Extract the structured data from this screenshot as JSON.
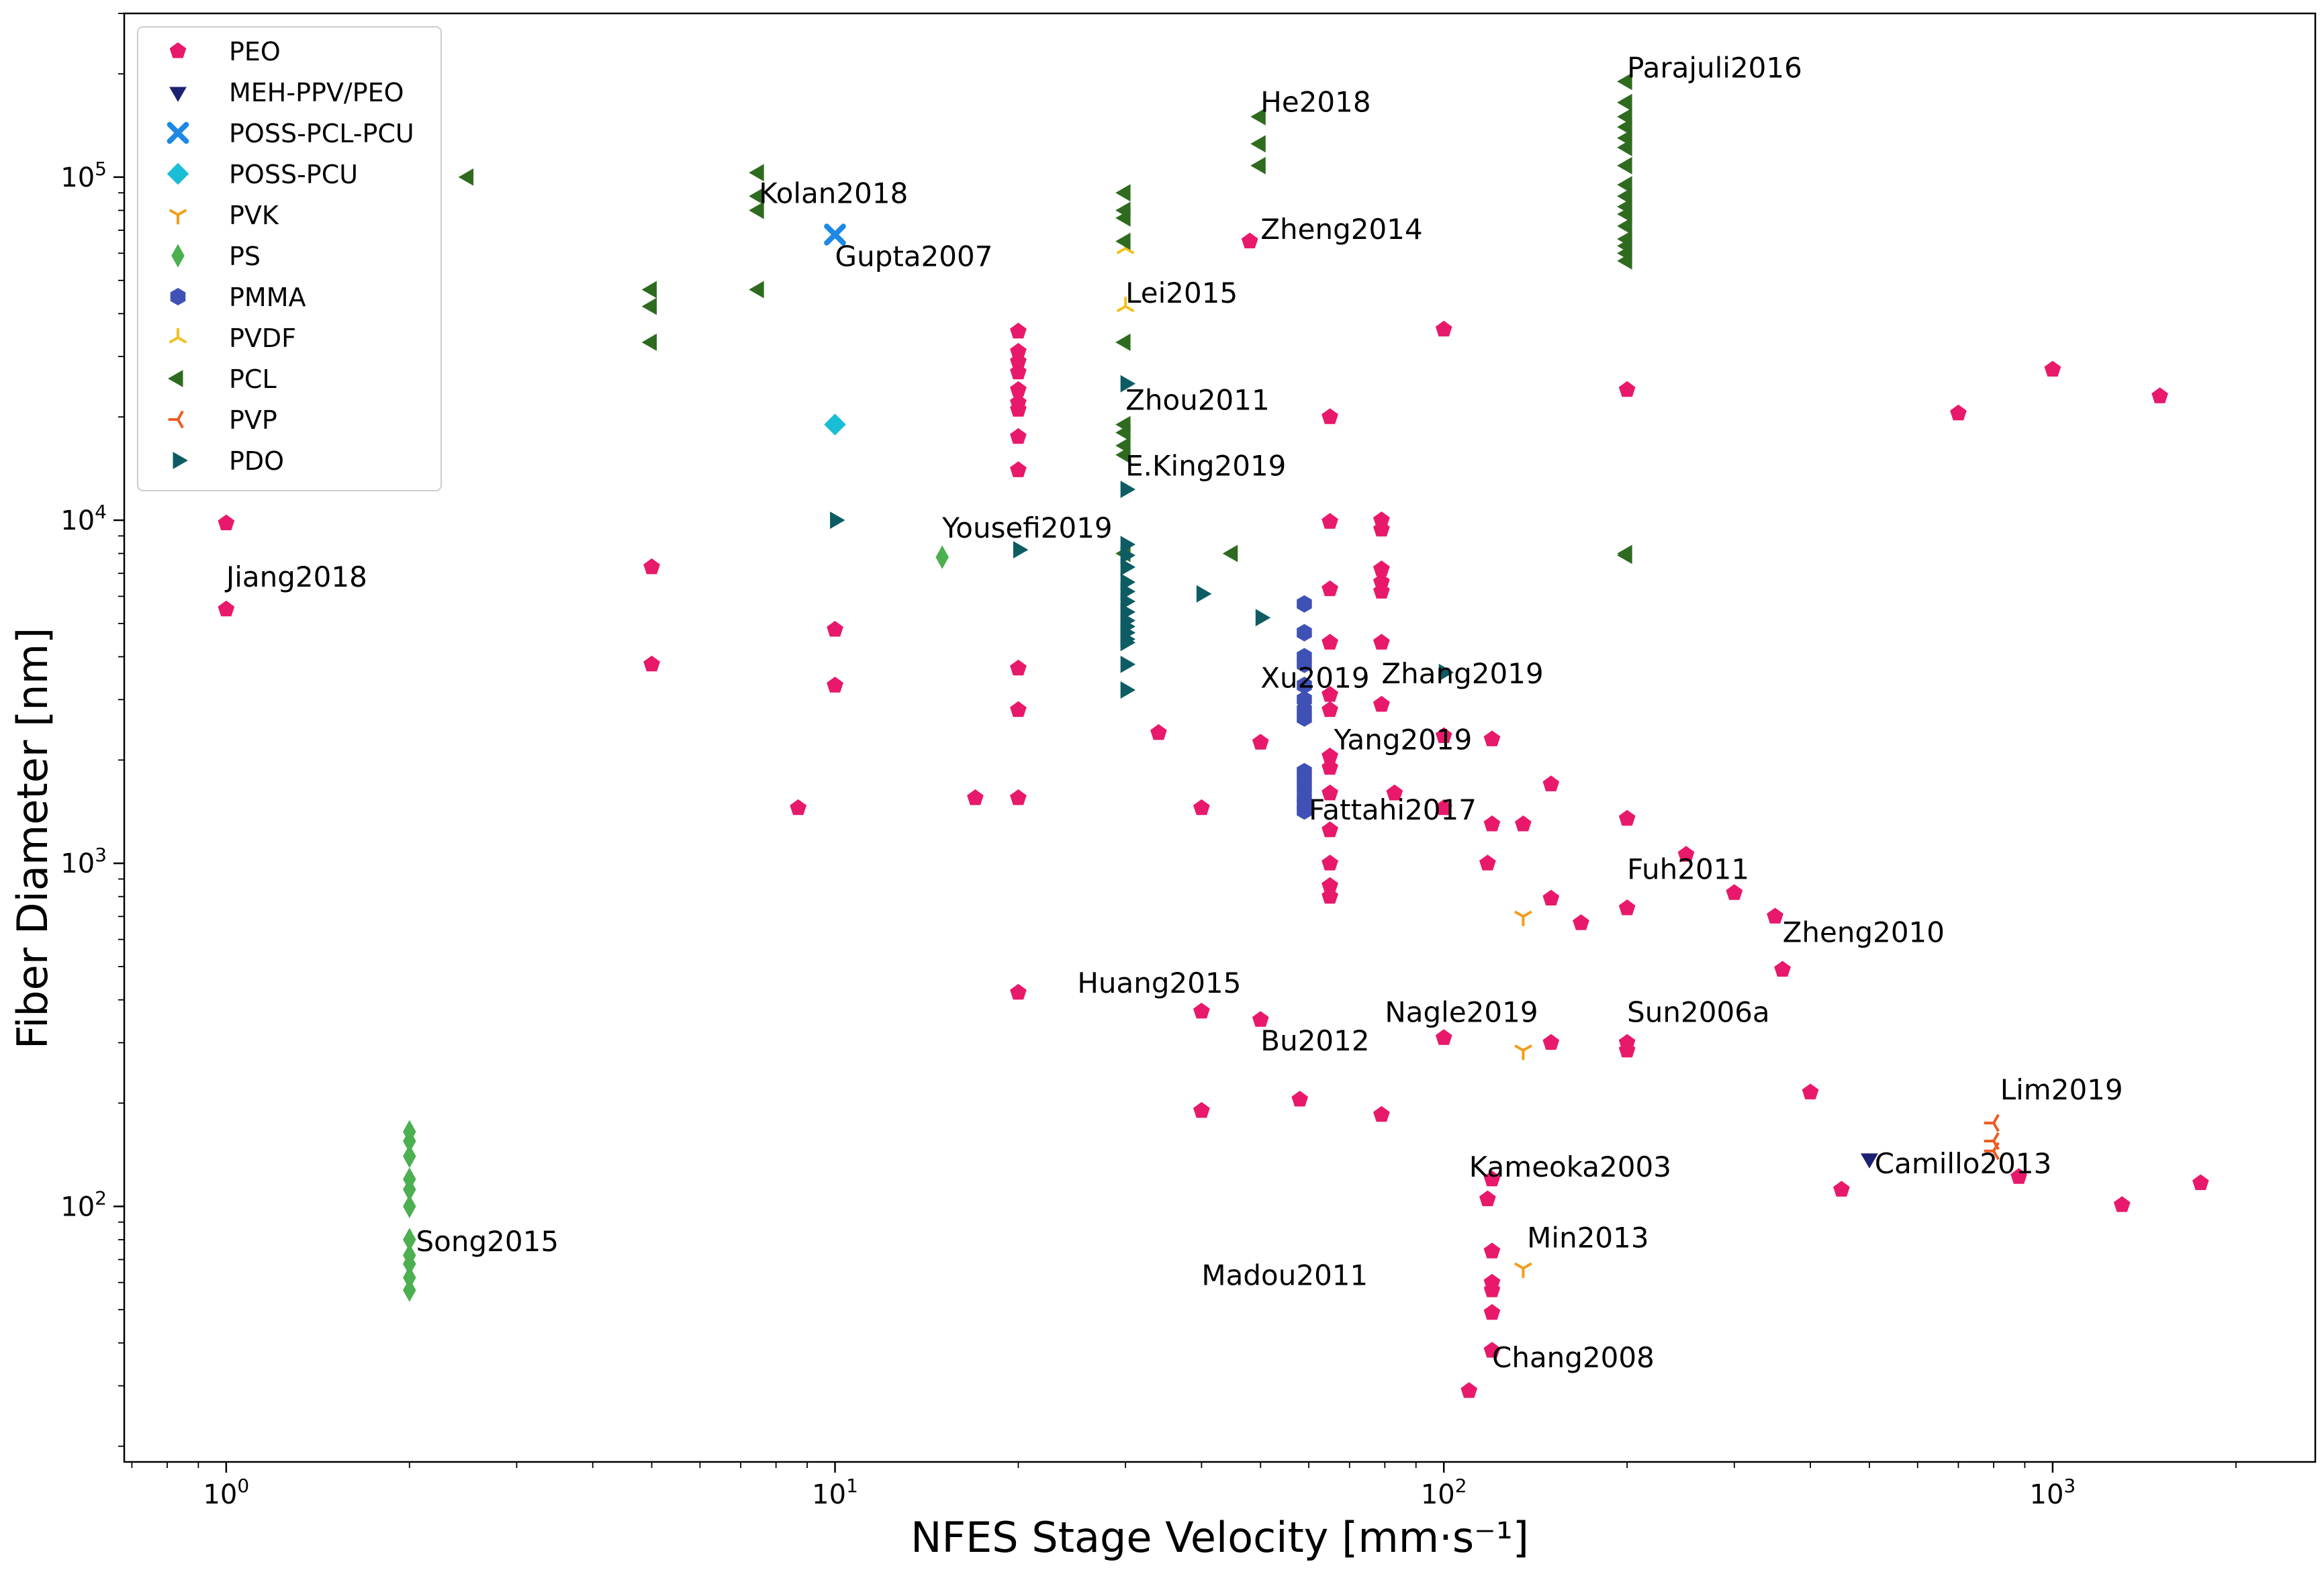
{
  "chart_data": {
    "type": "scatter",
    "title": "",
    "xlabel": "NFES Stage Velocity    [mm·s⁻¹]",
    "ylabel": "Fiber Diameter    [nm]",
    "xscale": "log",
    "yscale": "log",
    "xlim": [
      0.68,
      2700
    ],
    "ylim": [
      18,
      300000
    ],
    "x_ticks": [
      {
        "value": 1,
        "base": "10",
        "exp": "0"
      },
      {
        "value": 10,
        "base": "10",
        "exp": "1"
      },
      {
        "value": 100,
        "base": "10",
        "exp": "2"
      },
      {
        "value": 1000,
        "base": "10",
        "exp": "3"
      }
    ],
    "y_ticks": [
      {
        "value": 100,
        "base": "10",
        "exp": "2"
      },
      {
        "value": 1000,
        "base": "10",
        "exp": "3"
      },
      {
        "value": 10000,
        "base": "10",
        "exp": "4"
      },
      {
        "value": 100000,
        "base": "10",
        "exp": "5"
      }
    ],
    "grid": false,
    "legend_position": "top-left",
    "series": [
      {
        "name": "PEO",
        "color": "#e8196b",
        "marker": "pentagon",
        "x": [
          1,
          1,
          5,
          5,
          10,
          10,
          8.7,
          17,
          20,
          20,
          20,
          20,
          20,
          20,
          20,
          20,
          20,
          20,
          20,
          20,
          20,
          34,
          40,
          40,
          40,
          48,
          50,
          50,
          58,
          65,
          65,
          65,
          65,
          65,
          65,
          65,
          65,
          65,
          65,
          65,
          65,
          65,
          79,
          79,
          79,
          79,
          79,
          79,
          79,
          79,
          79,
          83,
          100,
          100,
          100,
          100,
          118,
          120,
          120,
          120,
          120,
          120,
          120,
          120,
          120,
          110,
          118,
          135,
          150,
          150,
          150,
          168,
          200,
          200,
          200,
          200,
          200,
          250,
          300,
          350,
          360,
          400,
          450,
          700,
          1000,
          1500,
          880,
          1300,
          1750
        ],
        "y": [
          9800,
          5500,
          7300,
          3800,
          4800,
          3300,
          1450,
          1550,
          35500,
          31000,
          29000,
          27000,
          24000,
          22000,
          21000,
          17500,
          14000,
          3700,
          2800,
          420,
          1550,
          2400,
          370,
          190,
          1450,
          65000,
          350,
          2250,
          205,
          20000,
          9900,
          6300,
          4400,
          3100,
          2800,
          2050,
          1900,
          1250,
          1000,
          860,
          800,
          1600,
          2900,
          10000,
          9400,
          7200,
          6600,
          6200,
          4400,
          2900,
          185,
          1600,
          36000,
          2350,
          1450,
          310,
          1000,
          1300,
          2300,
          120,
          74,
          60,
          57,
          49,
          38,
          29,
          105,
          1300,
          1700,
          790,
          300,
          670,
          24000,
          1350,
          740,
          300,
          285,
          1060,
          820,
          700,
          490,
          215,
          112,
          20500,
          27500,
          23000,
          122,
          101,
          117
        ]
      },
      {
        "name": "MEH-PPV/PEO",
        "color": "#1c2173",
        "marker": "triangle-down",
        "x": [
          500
        ],
        "y": [
          138
        ]
      },
      {
        "name": "POSS-PCL-PCU",
        "color": "#1e88e5",
        "marker": "x",
        "x": [
          10
        ],
        "y": [
          68000
        ]
      },
      {
        "name": "POSS-PCU",
        "color": "#19bed4",
        "marker": "diamond",
        "x": [
          10
        ],
        "y": [
          19000
        ]
      },
      {
        "name": "PVK",
        "color": "#f59c1a",
        "marker": "tri-left",
        "x": [
          135,
          135,
          135
        ],
        "y": [
          700,
          285,
          66
        ]
      },
      {
        "name": "PS",
        "color": "#4caf50",
        "marker": "thin-diamond",
        "x": [
          15,
          2,
          2,
          2,
          2,
          2,
          2,
          2,
          2,
          2,
          2,
          2
        ],
        "y": [
          7800,
          165,
          155,
          140,
          120,
          112,
          100,
          80,
          72,
          68,
          62,
          57
        ]
      },
      {
        "name": "PMMA",
        "color": "#3f51b5",
        "marker": "hexagon",
        "x": [
          59,
          59,
          59,
          59,
          59,
          59,
          59,
          59,
          59,
          59,
          59,
          59,
          59,
          59
        ],
        "y": [
          5700,
          4700,
          4000,
          3800,
          3300,
          3000,
          2800,
          2650,
          1850,
          1750,
          1650,
          1550,
          1480,
          1420
        ]
      },
      {
        "name": "PVDF",
        "color": "#f2c01e",
        "marker": "tri-down",
        "x": [
          30,
          30
        ],
        "y": [
          62000,
          42000
        ]
      },
      {
        "name": "PCL",
        "color": "#2e6b1f",
        "marker": "triangle-left",
        "x": [
          2.5,
          5,
          5,
          5,
          7.5,
          7.5,
          7.5,
          7.5,
          30,
          30,
          30,
          30,
          30,
          30,
          30,
          30,
          30,
          30,
          45,
          50,
          50,
          50,
          200,
          200,
          200,
          200,
          200,
          200,
          200,
          200,
          200,
          200,
          200,
          200,
          200,
          200,
          200,
          200,
          200,
          200
        ],
        "y": [
          100000,
          47000,
          42000,
          33000,
          103000,
          88000,
          80000,
          47000,
          90000,
          80000,
          76000,
          65000,
          33000,
          19000,
          18000,
          16500,
          15500,
          8000,
          8000,
          150000,
          125000,
          108000,
          190000,
          165000,
          150000,
          140000,
          130000,
          122000,
          108000,
          95000,
          88000,
          82000,
          78000,
          72000,
          66000,
          63000,
          60000,
          57000,
          7900,
          8000
        ]
      },
      {
        "name": "PVP",
        "color": "#f05a22",
        "marker": "tri-right",
        "x": [
          800,
          800,
          800
        ],
        "y": [
          175,
          155,
          145
        ]
      },
      {
        "name": "PDO",
        "color": "#0d5c63",
        "marker": "triangle-right",
        "x": [
          10,
          20,
          30,
          30,
          30,
          30,
          30,
          30,
          30,
          30,
          30,
          30,
          30,
          30,
          30,
          30,
          30,
          30,
          40,
          50,
          100
        ],
        "y": [
          10000,
          8200,
          25000,
          12300,
          8500,
          7900,
          7300,
          6600,
          6200,
          5800,
          5400,
          5100,
          4900,
          4700,
          4500,
          4400,
          3800,
          3200,
          6100,
          5200,
          3600
        ]
      }
    ],
    "annotations": [
      {
        "text": "Parajuli2016",
        "x": 200,
        "y": 195000
      },
      {
        "text": "He2018",
        "x": 50,
        "y": 155000
      },
      {
        "text": "Kolan2018",
        "x": 7.5,
        "y": 84000
      },
      {
        "text": "Zheng2014",
        "x": 50,
        "y": 66000
      },
      {
        "text": "Gupta2007",
        "x": 10,
        "y": 55000
      },
      {
        "text": "Lei2015",
        "x": 30,
        "y": 43000
      },
      {
        "text": "Zhou2011",
        "x": 30,
        "y": 21000
      },
      {
        "text": "E.King2019",
        "x": 30,
        "y": 13500
      },
      {
        "text": "Yousefi2019",
        "x": 15,
        "y": 8900
      },
      {
        "text": "Jiang2018",
        "x": 1,
        "y": 6400
      },
      {
        "text": "Xu2019",
        "x": 50,
        "y": 3250
      },
      {
        "text": "Zhang2019",
        "x": 79,
        "y": 3350
      },
      {
        "text": "Yang2019",
        "x": 66,
        "y": 2150
      },
      {
        "text": "Fattahi2017",
        "x": 60,
        "y": 1340
      },
      {
        "text": "Fuh2011",
        "x": 200,
        "y": 900
      },
      {
        "text": "Zheng2010",
        "x": 360,
        "y": 590
      },
      {
        "text": "Huang2015",
        "x": 25,
        "y": 420
      },
      {
        "text": "Nagle2019",
        "x": 80,
        "y": 345
      },
      {
        "text": "Sun2006a",
        "x": 200,
        "y": 345
      },
      {
        "text": "Bu2012",
        "x": 50,
        "y": 285
      },
      {
        "text": "Lim2019",
        "x": 820,
        "y": 205
      },
      {
        "text": "Camillo2013",
        "x": 510,
        "y": 125
      },
      {
        "text": "Kameoka2003",
        "x": 110,
        "y": 122
      },
      {
        "text": "Song2015",
        "x": 2.05,
        "y": 74
      },
      {
        "text": "Min2013",
        "x": 137,
        "y": 76
      },
      {
        "text": "Madou2011",
        "x": 40,
        "y": 59
      },
      {
        "text": "Chang2008",
        "x": 120,
        "y": 34
      }
    ]
  }
}
